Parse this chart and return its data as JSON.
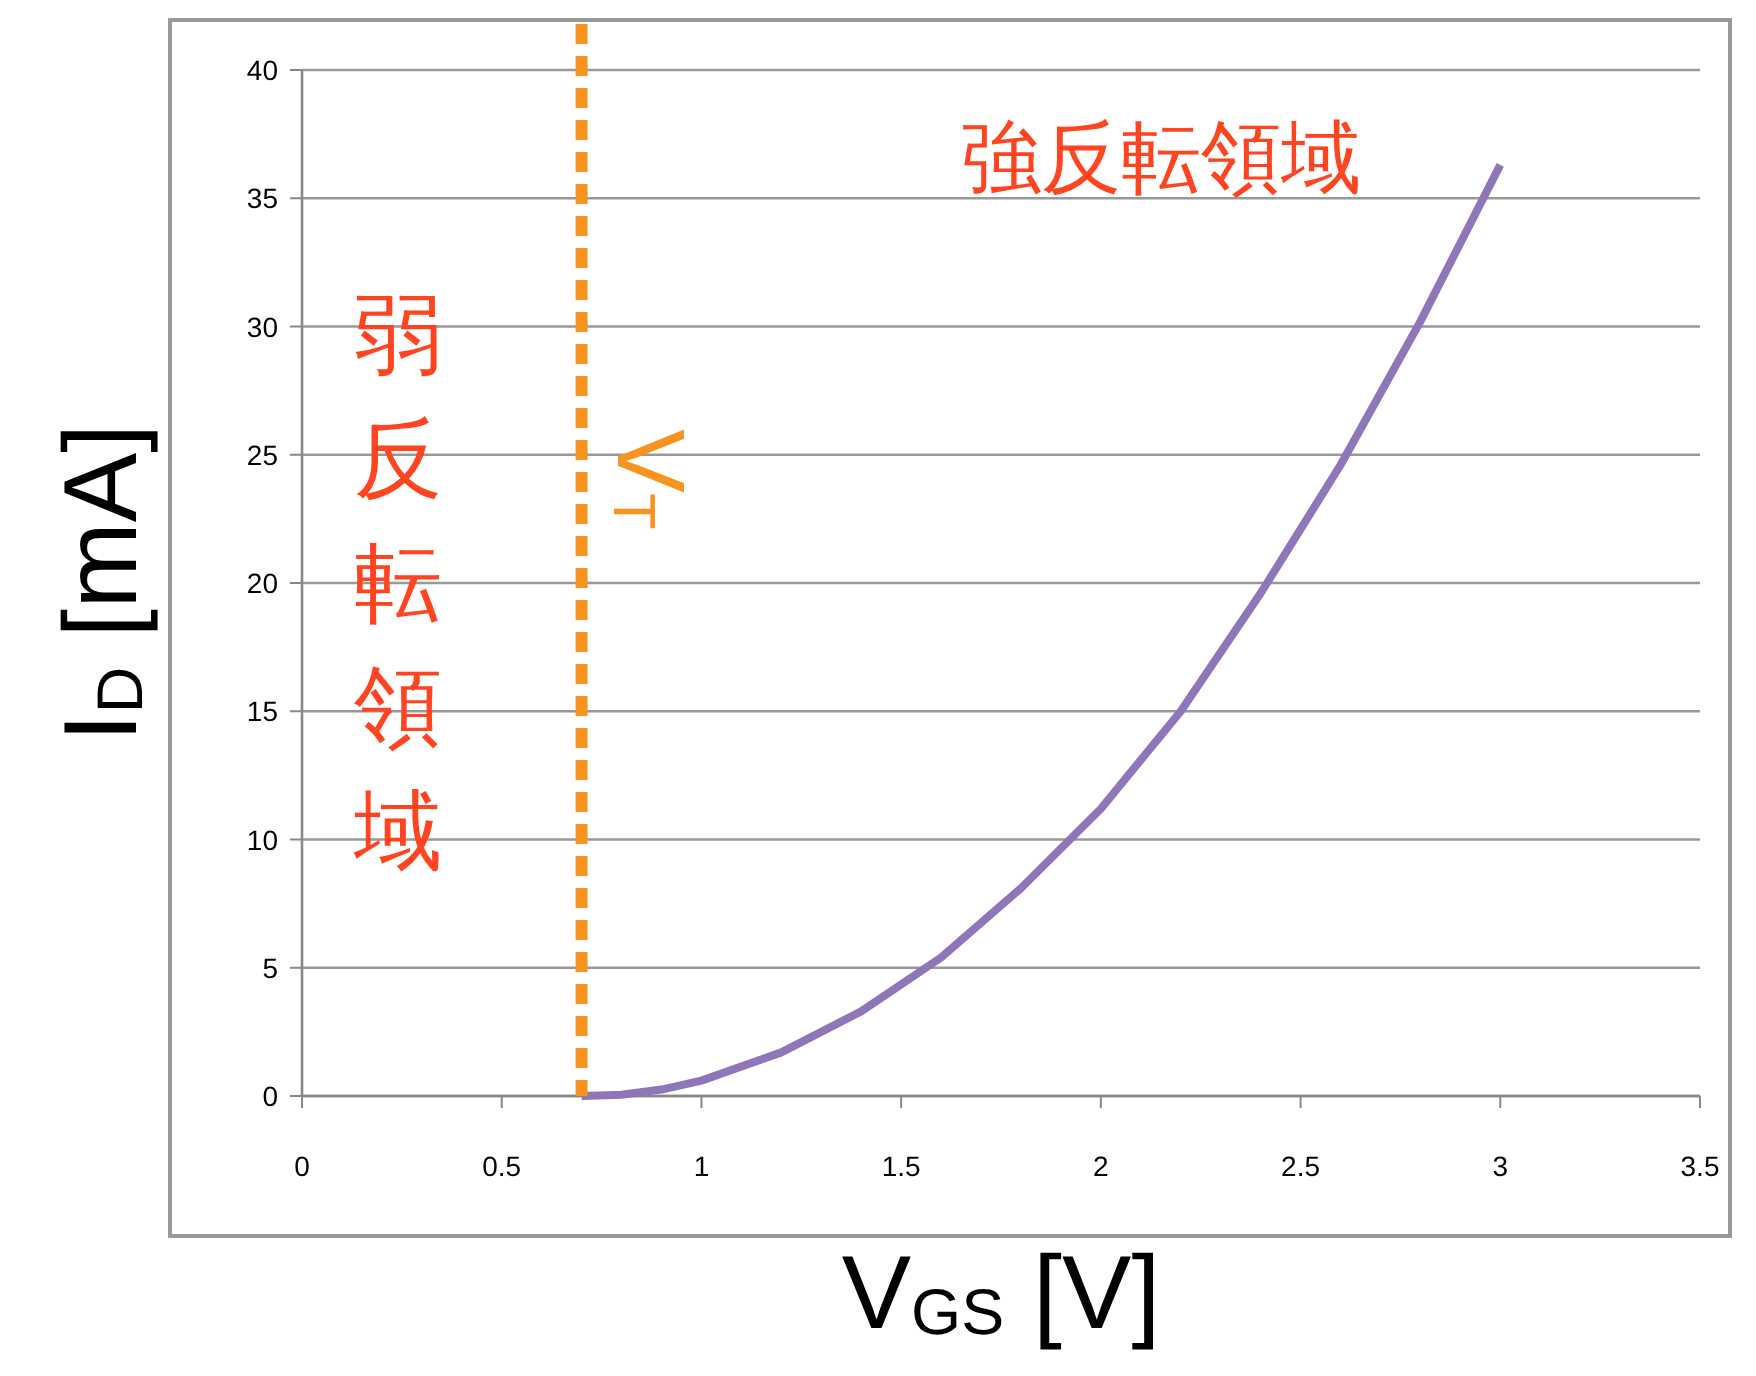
{
  "chart_data": {
    "type": "line",
    "xlabel": "V$_{GS}$ [V]",
    "ylabel": "I$_{D}$ [mA]",
    "xlim": [
      0,
      3.5
    ],
    "xticks": [
      0,
      0.5,
      1,
      1.5,
      2,
      2.5,
      3,
      3.5
    ],
    "ylim": [
      0,
      40
    ],
    "yticks": [
      0,
      5,
      10,
      15,
      20,
      25,
      30,
      35,
      40
    ],
    "grid": "y",
    "marker": "none",
    "line_style": "solid",
    "series": [
      {
        "color": "#8e76b8",
        "x": [
          0.7,
          0.8,
          0.9,
          1.0,
          1.2,
          1.4,
          1.6,
          1.8,
          2.0,
          2.2,
          2.4,
          2.6,
          2.8,
          3.0
        ],
        "values": [
          0,
          0.05,
          0.25,
          0.6,
          1.7,
          3.3,
          5.4,
          8.1,
          11.2,
          15,
          19.6,
          24.6,
          30.2,
          36.3
        ]
      }
    ],
    "ref_lines": [
      {
        "axis": "x",
        "value": 0.7,
        "label": "V$_{T}$",
        "color": "#f7931e",
        "line_style": "dashed"
      }
    ],
    "annotations": [
      "強反転領域",
      "弱反転領域"
    ]
  }
}
